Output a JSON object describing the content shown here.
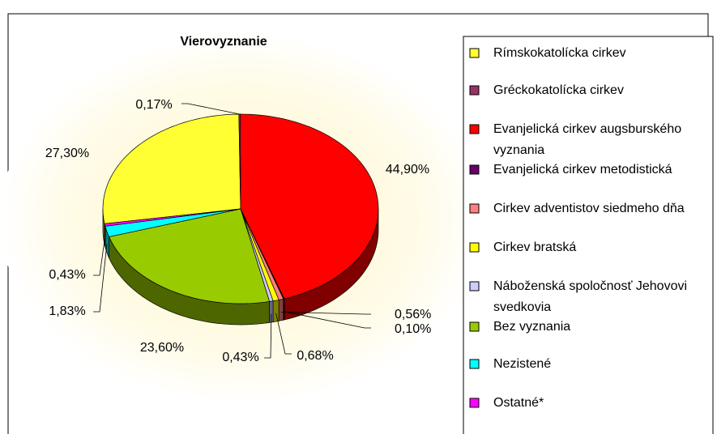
{
  "chart_data": {
    "type": "pie",
    "title": "Vierovyznanie",
    "categories": [
      "Rímskokatolícka cirkev",
      "Gréckokatolícka cirkev",
      "Evanjelická cirkev augsburského vyznania",
      "Evanjelická cirkev metodistická",
      "Cirkev adventistov siedmeho dňa",
      "Cirkev bratská",
      "Náboženská spoločnosť Jehovovi svedkovia",
      "Bez vyznania",
      "Nezistené",
      "Ostatné*"
    ],
    "values": [
      27.3,
      0.17,
      44.9,
      0.1,
      0.56,
      0.68,
      0.43,
      23.6,
      1.83,
      0.43
    ],
    "value_labels": [
      "27,30%",
      "0,17%",
      "44,90%",
      "0,10%",
      "0,56%",
      "0,68%",
      "0,43%",
      "23,60%",
      "1,83%",
      "0,43%"
    ],
    "colors": [
      "#ffff33",
      "#993366",
      "#ff0000",
      "#660066",
      "#ff8080",
      "#ffff00",
      "#ccccff",
      "#99cc00",
      "#00ffff",
      "#ff00ff"
    ],
    "legend": "right"
  }
}
